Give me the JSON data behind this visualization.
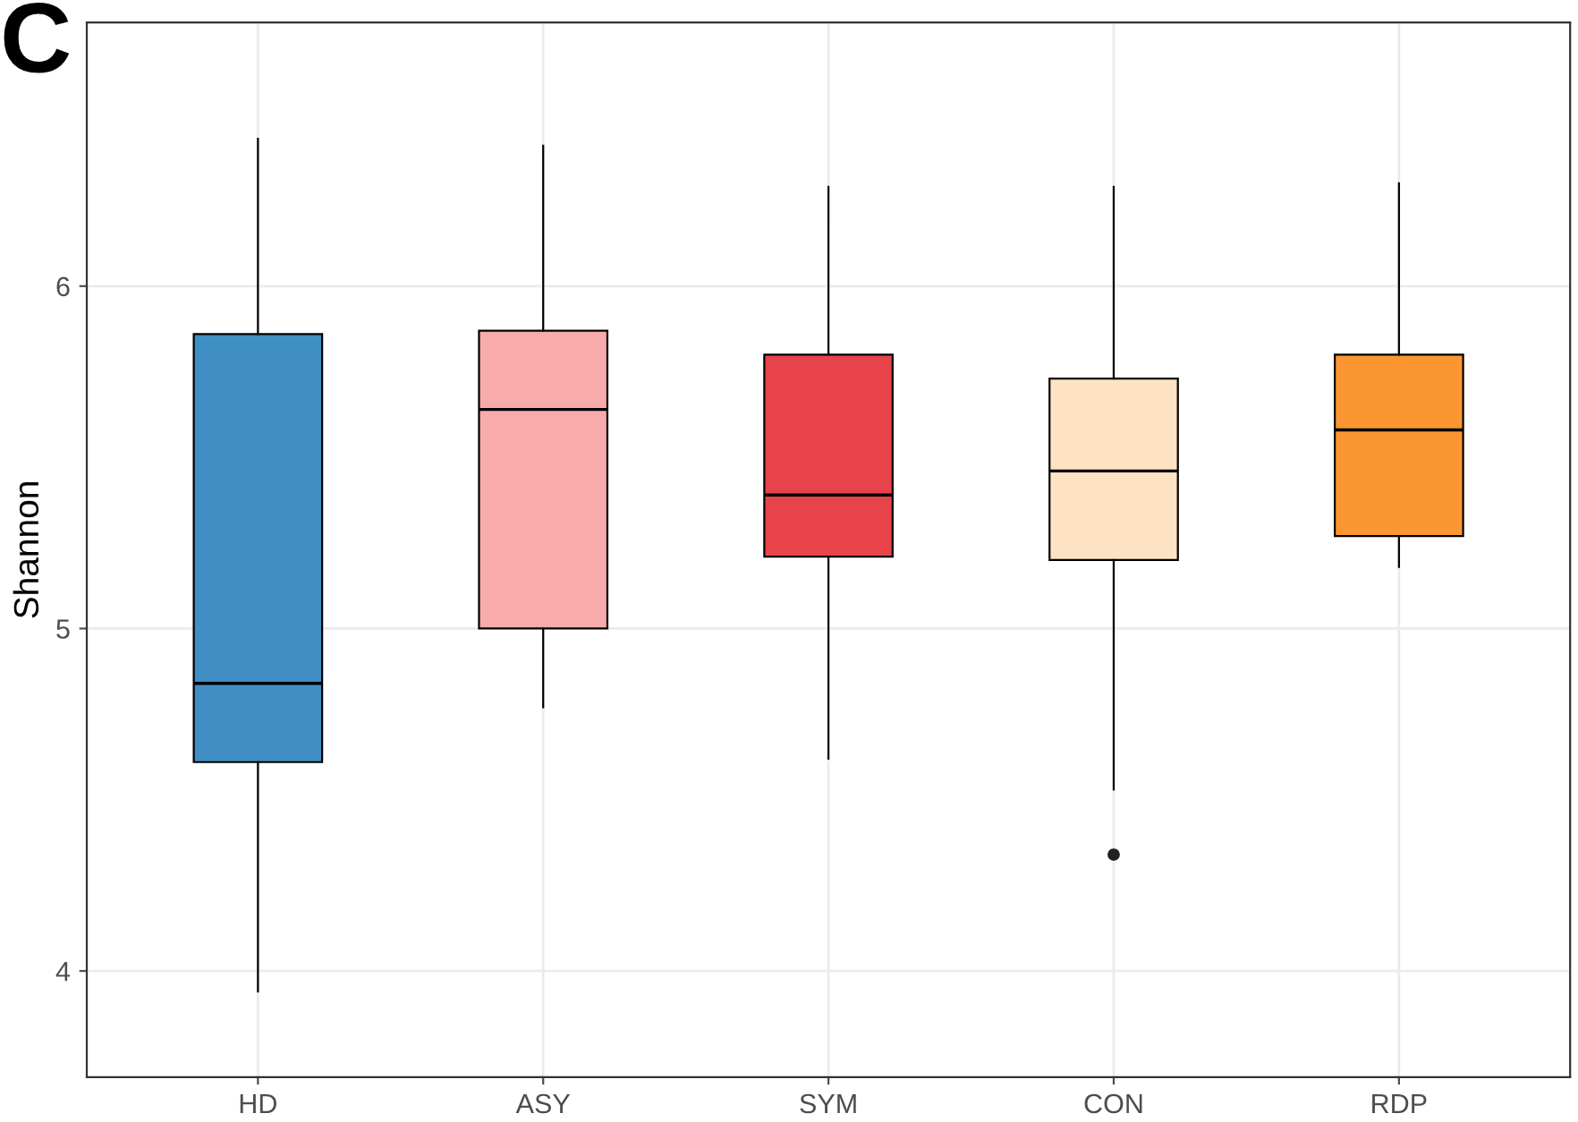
{
  "chart_data": {
    "type": "box",
    "ylabel": "Shannon",
    "annotations": [
      "C"
    ],
    "categories": [
      "HD",
      "ASY",
      "SYM",
      "CON",
      "RDP"
    ],
    "boxes": [
      {
        "low": 3.94,
        "q1": 4.61,
        "median": 4.84,
        "q3": 5.86,
        "high": 6.43
      },
      {
        "low": 4.77,
        "q1": 5.0,
        "median": 5.64,
        "q3": 5.87,
        "high": 6.41
      },
      {
        "low": 4.62,
        "q1": 5.21,
        "median": 5.39,
        "q3": 5.8,
        "high": 6.29
      },
      {
        "low": 4.53,
        "q1": 5.2,
        "median": 5.46,
        "q3": 5.73,
        "high": 6.29,
        "outliers": [
          4.34
        ]
      },
      {
        "low": 5.18,
        "q1": 5.27,
        "median": 5.58,
        "q3": 5.8,
        "high": 6.3
      }
    ],
    "colors": [
      "#3f8fc4",
      "#f9aaaa",
      "#e8434a",
      "#fde3c4",
      "#fb9632"
    ],
    "ylim": [
      3.69,
      6.77
    ],
    "yticks": [
      4,
      5,
      6
    ],
    "grid": true,
    "legend": false
  }
}
